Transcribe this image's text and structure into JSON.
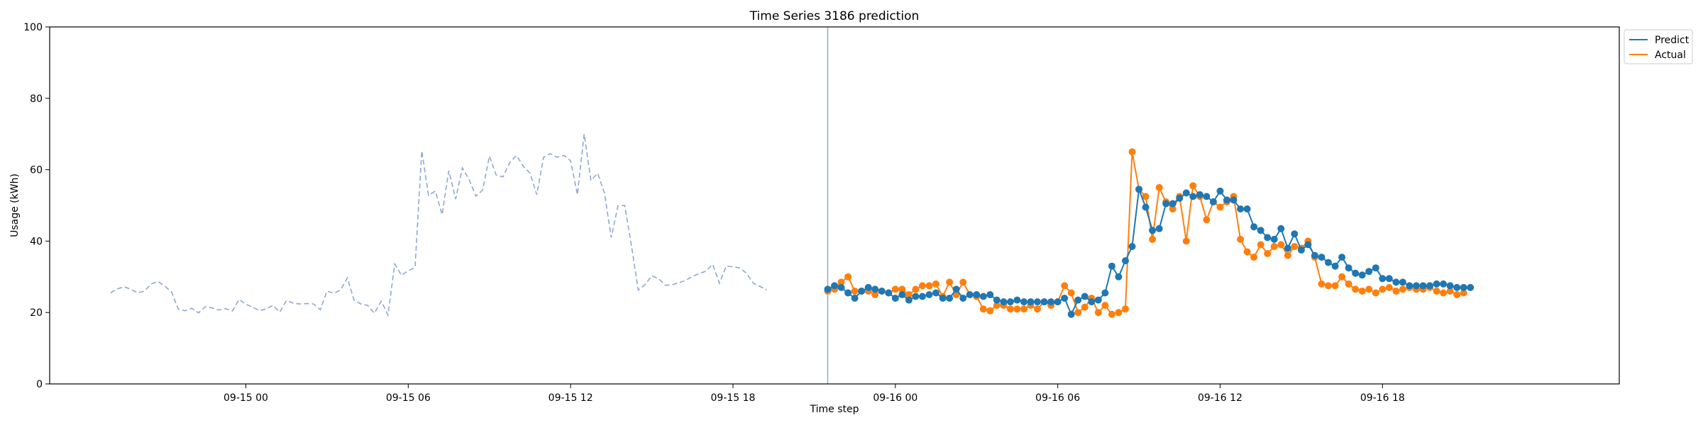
{
  "chart_data": {
    "type": "line",
    "title": "Time Series 3186 prediction",
    "xlabel": "Time step",
    "ylabel": "Usage (kWh)",
    "ylim": [
      0,
      100
    ],
    "yticks": [
      0,
      20,
      40,
      60,
      80,
      100
    ],
    "xlim": [
      "09-14 16:45",
      "09-17 02:45"
    ],
    "xticks": [
      {
        "label": "09-15 00",
        "t": "09-15 00:00"
      },
      {
        "label": "09-15 06",
        "t": "09-15 06:00"
      },
      {
        "label": "09-15 12",
        "t": "09-15 12:00"
      },
      {
        "label": "09-15 18",
        "t": "09-15 18:00"
      },
      {
        "label": "09-16 00",
        "t": "09-16 00:00"
      },
      {
        "label": "09-16 06",
        "t": "09-16 06:00"
      },
      {
        "label": "09-16 12",
        "t": "09-16 12:00"
      },
      {
        "label": "09-16 18",
        "t": "09-16 18:00"
      }
    ],
    "forecast_start": "09-15 21:30",
    "grid": false,
    "legend": "top-right outside",
    "series": [
      {
        "key": "history",
        "style": "dashed",
        "color": "#8fa8d0",
        "start": "09-14 19:00",
        "step_minutes": 15,
        "values": [
          25.5,
          26.6,
          27.2,
          26.5,
          25.5,
          26.0,
          28.0,
          28.7,
          27.4,
          25.8,
          21.0,
          20.5,
          21.2,
          19.9,
          21.6,
          21.3,
          20.7,
          21.1,
          20.4,
          23.7,
          22.3,
          21.5,
          20.5,
          21.0,
          22.0,
          20.1,
          23.4,
          22.6,
          22.4,
          22.5,
          22.4,
          20.8,
          26.0,
          25.4,
          26.3,
          29.7,
          23.4,
          22.4,
          22.0,
          19.8,
          23.2,
          19.3,
          33.6,
          30.4,
          31.7,
          32.6,
          65.3,
          52.8,
          54.0,
          47.4,
          59.7,
          51.8,
          60.5,
          57.2,
          52.6,
          54.3,
          63.8,
          58.5,
          58.0,
          62.0,
          64.0,
          61.0,
          59.0,
          53.0,
          63.5,
          64.5,
          63.5,
          64.0,
          62.5,
          53.0,
          70.0,
          57.0,
          59.0,
          53.5,
          41.0,
          49.9,
          50.0,
          38.6,
          26.3,
          27.8,
          30.3,
          29.5,
          27.6,
          27.8,
          28.3,
          29.0,
          30.1,
          30.9,
          31.6,
          33.5,
          28.2,
          33.0,
          32.8,
          32.5,
          31.0,
          28.2,
          27.3,
          26.3
        ]
      },
      {
        "key": "predict",
        "name": "Predict",
        "style": "solid-markers",
        "color": "#1f77b4",
        "start": "09-15 21:30",
        "step_minutes": 15,
        "values": [
          26.5,
          27.5,
          27.0,
          25.5,
          24.0,
          26.0,
          27.0,
          26.5,
          26.0,
          25.5,
          24.0,
          25.0,
          23.5,
          24.5,
          24.5,
          25.0,
          25.5,
          24.0,
          24.0,
          26.5,
          24.0,
          25.0,
          25.0,
          24.5,
          25.0,
          23.5,
          23.0,
          23.0,
          23.5,
          23.0,
          23.0,
          23.0,
          23.0,
          23.0,
          23.0,
          24.0,
          19.5,
          23.5,
          24.5,
          23.0,
          23.5,
          25.5,
          33.0,
          30.0,
          34.5,
          38.5,
          54.5,
          49.5,
          43.0,
          43.5,
          50.5,
          50.5,
          52.0,
          53.5,
          52.5,
          53.0,
          52.5,
          51.0,
          54.0,
          51.5,
          51.5,
          49.0,
          49.0,
          44.0,
          43.0,
          41.0,
          40.5,
          43.5,
          38.0,
          42.0,
          37.5,
          39.0,
          36.0,
          35.5,
          34.0,
          33.0,
          35.5,
          32.5,
          31.0,
          30.5,
          31.5,
          32.5,
          29.5,
          29.5,
          28.5,
          28.5,
          27.5,
          27.5,
          27.5,
          27.5,
          28.0,
          28.0,
          27.5,
          27.0,
          27.0,
          27.0
        ]
      },
      {
        "key": "actual",
        "name": "Actual",
        "style": "solid-markers",
        "color": "#ff7f0e",
        "start": "09-15 21:30",
        "step_minutes": 15,
        "values": [
          26.0,
          26.5,
          28.5,
          30.0,
          26.0,
          26.0,
          26.0,
          25.0,
          26.0,
          25.5,
          26.5,
          26.5,
          25.0,
          26.5,
          27.5,
          27.5,
          28.0,
          24.5,
          28.5,
          25.0,
          28.5,
          25.0,
          24.5,
          21.0,
          20.5,
          22.0,
          22.0,
          21.0,
          21.0,
          21.0,
          22.0,
          21.0,
          23.0,
          22.0,
          23.0,
          27.5,
          25.5,
          20.0,
          21.5,
          24.0,
          20.0,
          22.0,
          19.5,
          20.0,
          21.0,
          65.0,
          54.5,
          52.5,
          40.5,
          55.0,
          51.0,
          49.0,
          52.5,
          40.0,
          55.5,
          52.5,
          46.0,
          51.0,
          49.5,
          51.0,
          52.5,
          40.5,
          37.0,
          35.5,
          39.0,
          36.5,
          38.5,
          39.0,
          36.0,
          38.5,
          38.0,
          40.0,
          35.5,
          28.0,
          27.5,
          27.5,
          30.0,
          28.0,
          26.5,
          26.0,
          26.5,
          25.5,
          26.5,
          27.0,
          26.0,
          26.5,
          27.0,
          26.5,
          26.5,
          27.0,
          26.0,
          25.5,
          26.0,
          25.0,
          25.5
        ]
      }
    ]
  }
}
